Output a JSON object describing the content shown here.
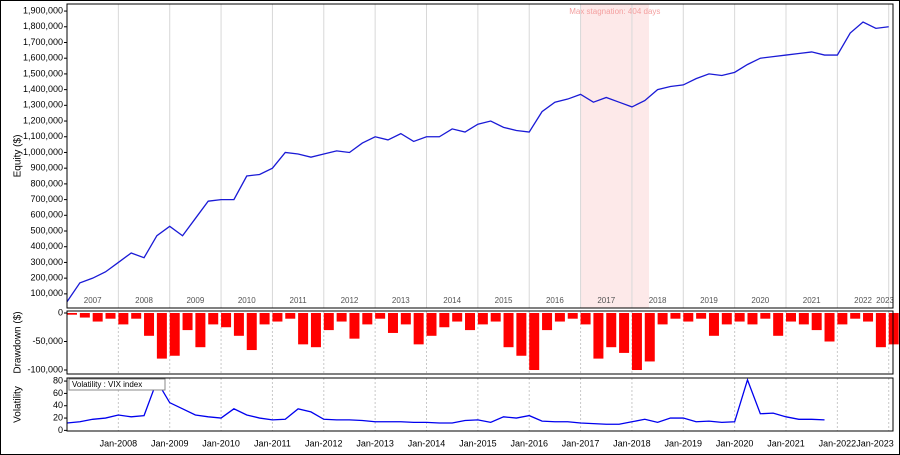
{
  "chart_data": [
    {
      "type": "line",
      "ylabel": "Equity ($)",
      "x": [
        "2007-01",
        "2007-04",
        "2007-07",
        "2007-10",
        "2008-01",
        "2008-04",
        "2008-07",
        "2008-10",
        "2009-01",
        "2009-04",
        "2009-07",
        "2009-10",
        "2010-01",
        "2010-04",
        "2010-07",
        "2010-10",
        "2011-01",
        "2011-04",
        "2011-07",
        "2011-10",
        "2012-01",
        "2012-04",
        "2012-07",
        "2012-10",
        "2013-01",
        "2013-04",
        "2013-07",
        "2013-10",
        "2014-01",
        "2014-04",
        "2014-07",
        "2014-10",
        "2015-01",
        "2015-04",
        "2015-07",
        "2015-10",
        "2016-01",
        "2016-04",
        "2016-07",
        "2016-10",
        "2017-01",
        "2017-04",
        "2017-07",
        "2017-10",
        "2018-01",
        "2018-04",
        "2018-07",
        "2018-10",
        "2019-01",
        "2019-04",
        "2019-07",
        "2019-10",
        "2020-01",
        "2020-04",
        "2020-07",
        "2020-10",
        "2021-01",
        "2021-04",
        "2021-07",
        "2021-10",
        "2022-01",
        "2022-04",
        "2022-07",
        "2022-10",
        "2023-01"
      ],
      "series": [
        {
          "name": "Equity",
          "color": "#1a1ad6",
          "values": [
            50000,
            170000,
            200000,
            240000,
            300000,
            360000,
            330000,
            470000,
            530000,
            470000,
            580000,
            690000,
            700000,
            700000,
            850000,
            860000,
            900000,
            1000000,
            990000,
            970000,
            990000,
            1010000,
            1000000,
            1060000,
            1100000,
            1080000,
            1120000,
            1070000,
            1100000,
            1100000,
            1150000,
            1130000,
            1180000,
            1200000,
            1160000,
            1140000,
            1130000,
            1260000,
            1320000,
            1340000,
            1370000,
            1320000,
            1350000,
            1320000,
            1290000,
            1330000,
            1400000,
            1420000,
            1430000,
            1470000,
            1500000,
            1490000,
            1510000,
            1560000,
            1600000,
            1610000,
            1620000,
            1630000,
            1640000,
            1620000,
            1620000,
            1760000,
            1830000,
            1790000,
            1800000
          ]
        }
      ],
      "xlim": [
        "2007-01",
        "2023-02"
      ],
      "ylim": [
        10000,
        1945000
      ],
      "yticks": [
        {
          "value": 100000,
          "label": "100,000"
        },
        {
          "value": 200000,
          "label": "200,000"
        },
        {
          "value": 300000,
          "label": "300,000"
        },
        {
          "value": 400000,
          "label": "400,000"
        },
        {
          "value": 500000,
          "label": "500,000"
        },
        {
          "value": 600000,
          "label": "600,000"
        },
        {
          "value": 700000,
          "label": "700,000"
        },
        {
          "value": 800000,
          "label": "800,000"
        },
        {
          "value": 900000,
          "label": "900,000"
        },
        {
          "value": 1000000,
          "label": "1,000,000"
        },
        {
          "value": 1100000,
          "label": "1,100,000"
        },
        {
          "value": 1200000,
          "label": "1,200,000"
        },
        {
          "value": 1300000,
          "label": "1,300,000"
        },
        {
          "value": 1400000,
          "label": "1,400,000"
        },
        {
          "value": 1500000,
          "label": "1,500,000"
        },
        {
          "value": 1600000,
          "label": "1,600,000"
        },
        {
          "value": 1700000,
          "label": "1,700,000"
        },
        {
          "value": 1800000,
          "label": "1,800,000"
        },
        {
          "value": 1900000,
          "label": "1,900,000"
        }
      ],
      "year_labels": [
        {
          "value": "2007-07",
          "label": "2007"
        },
        {
          "value": "2008-07",
          "label": "2008"
        },
        {
          "value": "2009-07",
          "label": "2009"
        },
        {
          "value": "2010-07",
          "label": "2010"
        },
        {
          "value": "2011-07",
          "label": "2011"
        },
        {
          "value": "2012-07",
          "label": "2012"
        },
        {
          "value": "2013-07",
          "label": "2013"
        },
        {
          "value": "2014-07",
          "label": "2014"
        },
        {
          "value": "2015-07",
          "label": "2015"
        },
        {
          "value": "2016-07",
          "label": "2016"
        },
        {
          "value": "2017-07",
          "label": "2017"
        },
        {
          "value": "2018-07",
          "label": "2018"
        },
        {
          "value": "2019-07",
          "label": "2019"
        },
        {
          "value": "2020-07",
          "label": "2020"
        },
        {
          "value": "2021-07",
          "label": "2021"
        },
        {
          "value": "2022-07",
          "label": "2022"
        },
        {
          "value": "2023-01",
          "label": "2023"
        }
      ],
      "stagnation": {
        "label": "Max stagnation: 404 days",
        "start": "2017-01",
        "end": "2018-05",
        "color": "#fde9e9"
      }
    },
    {
      "type": "bar",
      "ylabel": "Drawdown ($)",
      "x": [
        "2007-01",
        "2007-04",
        "2007-07",
        "2007-10",
        "2008-01",
        "2008-04",
        "2008-07",
        "2008-10",
        "2009-01",
        "2009-04",
        "2009-07",
        "2009-10",
        "2010-01",
        "2010-04",
        "2010-07",
        "2010-10",
        "2011-01",
        "2011-04",
        "2011-07",
        "2011-10",
        "2012-01",
        "2012-04",
        "2012-07",
        "2012-10",
        "2013-01",
        "2013-04",
        "2013-07",
        "2013-10",
        "2014-01",
        "2014-04",
        "2014-07",
        "2014-10",
        "2015-01",
        "2015-04",
        "2015-07",
        "2015-10",
        "2016-01",
        "2016-04",
        "2016-07",
        "2016-10",
        "2017-01",
        "2017-04",
        "2017-07",
        "2017-10",
        "2018-01",
        "2018-04",
        "2018-07",
        "2018-10",
        "2019-01",
        "2019-04",
        "2019-07",
        "2019-10",
        "2020-01",
        "2020-04",
        "2020-07",
        "2020-10",
        "2021-01",
        "2021-04",
        "2021-07",
        "2021-10",
        "2022-01",
        "2022-04",
        "2022-07",
        "2022-10",
        "2023-01"
      ],
      "series": [
        {
          "name": "Drawdown",
          "color": "#ff0000",
          "values": [
            -3000,
            -8000,
            -15000,
            -10000,
            -20000,
            -10000,
            -40000,
            -80000,
            -75000,
            -30000,
            -60000,
            -20000,
            -25000,
            -40000,
            -65000,
            -20000,
            -15000,
            -10000,
            -55000,
            -60000,
            -30000,
            -15000,
            -45000,
            -20000,
            -10000,
            -35000,
            -20000,
            -55000,
            -40000,
            -25000,
            -15000,
            -30000,
            -20000,
            -15000,
            -60000,
            -75000,
            -100000,
            -30000,
            -15000,
            -10000,
            -20000,
            -80000,
            -60000,
            -70000,
            -100000,
            -85000,
            -20000,
            -10000,
            -15000,
            -10000,
            -40000,
            -20000,
            -15000,
            -20000,
            -10000,
            -40000,
            -15000,
            -20000,
            -30000,
            -50000,
            -20000,
            -10000,
            -15000,
            -60000,
            -55000
          ]
        }
      ],
      "xlim": [
        "2007-01",
        "2023-02"
      ],
      "ylim": [
        -107000,
        3500
      ],
      "yticks": [
        0,
        {
          "value": -50000,
          "label": "-50,000"
        },
        {
          "value": -100000,
          "label": "-100,000"
        }
      ]
    },
    {
      "type": "line",
      "ylabel": "Volatility",
      "x": [
        "2007-01",
        "2007-04",
        "2007-07",
        "2007-10",
        "2008-01",
        "2008-04",
        "2008-07",
        "2008-10",
        "2009-01",
        "2009-04",
        "2009-07",
        "2009-10",
        "2010-01",
        "2010-04",
        "2010-07",
        "2010-10",
        "2011-01",
        "2011-04",
        "2011-07",
        "2011-10",
        "2012-01",
        "2012-04",
        "2012-07",
        "2012-10",
        "2013-01",
        "2013-04",
        "2013-07",
        "2013-10",
        "2014-01",
        "2014-04",
        "2014-07",
        "2014-10",
        "2015-01",
        "2015-04",
        "2015-07",
        "2015-10",
        "2016-01",
        "2016-04",
        "2016-07",
        "2016-10",
        "2017-01",
        "2017-04",
        "2017-07",
        "2017-10",
        "2018-01",
        "2018-04",
        "2018-07",
        "2018-10",
        "2019-01",
        "2019-04",
        "2019-07",
        "2019-10",
        "2020-01",
        "2020-04",
        "2020-07",
        "2020-10",
        "2021-01",
        "2021-04",
        "2021-07",
        "2021-10",
        "2022-01",
        "2022-04",
        "2022-07",
        "2022-10",
        "2023-01"
      ],
      "series": [
        {
          "name": "Volatility : VIX index",
          "color": "#0000ee",
          "values": [
            12,
            14,
            18,
            20,
            25,
            22,
            24,
            80,
            45,
            35,
            25,
            22,
            20,
            35,
            25,
            20,
            17,
            18,
            35,
            30,
            18,
            17,
            17,
            16,
            14,
            14,
            14,
            13,
            13,
            12,
            12,
            16,
            17,
            13,
            22,
            20,
            24,
            15,
            14,
            14,
            12,
            11,
            10,
            10,
            14,
            18,
            13,
            20,
            20,
            14,
            15,
            13,
            14,
            82,
            27,
            28,
            22,
            18,
            18,
            17,
            null,
            null,
            null,
            null,
            null
          ]
        }
      ],
      "xlim": [
        "2007-01",
        "2023-02"
      ],
      "ylim": [
        -1,
        85
      ],
      "yticks": [
        0,
        20,
        40,
        60,
        80
      ],
      "xticks": [
        {
          "value": "2008-01",
          "label": "Jan-2008"
        },
        {
          "value": "2009-01",
          "label": "Jan-2009"
        },
        {
          "value": "2010-01",
          "label": "Jan-2010"
        },
        {
          "value": "2011-01",
          "label": "Jan-2011"
        },
        {
          "value": "2012-01",
          "label": "Jan-2012"
        },
        {
          "value": "2013-01",
          "label": "Jan-2013"
        },
        {
          "value": "2014-01",
          "label": "Jan-2014"
        },
        {
          "value": "2015-01",
          "label": "Jan-2015"
        },
        {
          "value": "2016-01",
          "label": "Jan-2016"
        },
        {
          "value": "2017-01",
          "label": "Jan-2017"
        },
        {
          "value": "2018-01",
          "label": "Jan-2018"
        },
        {
          "value": "2019-01",
          "label": "Jan-2019"
        },
        {
          "value": "2020-01",
          "label": "Jan-2020"
        },
        {
          "value": "2021-01",
          "label": "Jan-2021"
        },
        {
          "value": "2022-01",
          "label": "Jan-2022"
        },
        {
          "value": "2023-01",
          "label": "Jan-2023"
        }
      ]
    }
  ]
}
